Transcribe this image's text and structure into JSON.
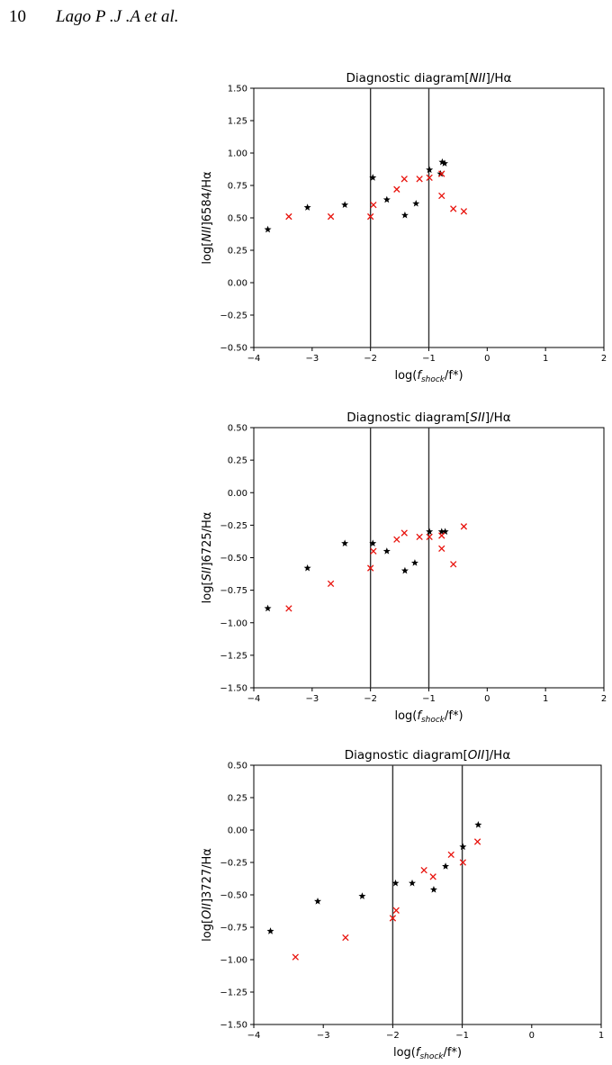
{
  "header": {
    "page_number": "10",
    "running_head": "Lago P .J .A et al."
  },
  "colors": {
    "series_black": "#000000",
    "series_red": "#e8120c",
    "vertical_lines": "#333333"
  },
  "chart_data": [
    {
      "type": "scatter",
      "title_prefix": "Diagnostic diagram[",
      "title_ion": "NII",
      "title_suffix": "]/Hα",
      "ylabel_prefix": "log[",
      "ylabel_ion": "NII",
      "ylabel_suffix": "]6584/Hα",
      "xlabel_prefix": "log(",
      "xlabel_sub": "shock",
      "xlabel_suffix": "/f*)",
      "xlim": [
        -4,
        2
      ],
      "ylim": [
        -0.5,
        1.5
      ],
      "xticks": [
        -4,
        -3,
        -2,
        -1,
        0,
        1,
        2
      ],
      "xtick_labels": [
        "−4",
        "−3",
        "−2",
        "−1",
        "0",
        "1",
        "2"
      ],
      "yticks": [
        -0.5,
        -0.25,
        0,
        0.25,
        0.5,
        0.75,
        1,
        1.25,
        1.5
      ],
      "ytick_labels": [
        "−0.50",
        "−0.25",
        "0.00",
        "0.25",
        "0.50",
        "0.75",
        "1.00",
        "1.25",
        "1.50"
      ],
      "vlines": [
        -2,
        -1
      ],
      "grid": false,
      "series": [
        {
          "marker": "star",
          "color": "#000000",
          "x": [
            -3.76,
            -3.08,
            -2.44,
            -1.96,
            -1.72,
            -1.41,
            -1.22,
            -0.99,
            -0.77,
            -0.73,
            -0.8
          ],
          "y": [
            0.41,
            0.58,
            0.6,
            0.81,
            0.64,
            0.52,
            0.61,
            0.87,
            0.93,
            0.92,
            0.84
          ]
        },
        {
          "marker": "x",
          "color": "#e8120c",
          "x": [
            -3.4,
            -2.68,
            -2.0,
            -1.95,
            -1.55,
            -1.42,
            -1.16,
            -0.99,
            -0.78,
            -0.78,
            -0.58,
            -0.4
          ],
          "y": [
            0.51,
            0.51,
            0.51,
            0.6,
            0.72,
            0.8,
            0.8,
            0.81,
            0.84,
            0.67,
            0.57,
            0.55
          ]
        }
      ]
    },
    {
      "type": "scatter",
      "title_prefix": "Diagnostic diagram[",
      "title_ion": "SII",
      "title_suffix": "]/Hα",
      "ylabel_prefix": "log[",
      "ylabel_ion": "SII",
      "ylabel_suffix": "]6725/Hα",
      "xlabel_prefix": "log(",
      "xlabel_sub": "shock",
      "xlabel_suffix": "/f*)",
      "xlim": [
        -4,
        2
      ],
      "ylim": [
        -1.5,
        0.5
      ],
      "xticks": [
        -4,
        -3,
        -2,
        -1,
        0,
        1,
        2
      ],
      "xtick_labels": [
        "−4",
        "−3",
        "−2",
        "−1",
        "0",
        "1",
        "2"
      ],
      "yticks": [
        -1.5,
        -1.25,
        -1,
        -0.75,
        -0.5,
        -0.25,
        0,
        0.25,
        0.5
      ],
      "ytick_labels": [
        "−1.50",
        "−1.25",
        "−1.00",
        "−0.75",
        "−0.50",
        "−0.25",
        "0.00",
        "0.25",
        "0.50"
      ],
      "vlines": [
        -2,
        -1
      ],
      "grid": false,
      "series": [
        {
          "marker": "star",
          "color": "#000000",
          "x": [
            -3.76,
            -3.08,
            -2.44,
            -1.96,
            -1.72,
            -1.41,
            -1.24,
            -0.99,
            -0.78,
            -0.72
          ],
          "y": [
            -0.89,
            -0.58,
            -0.39,
            -0.39,
            -0.45,
            -0.6,
            -0.54,
            -0.3,
            -0.3,
            -0.3
          ]
        },
        {
          "marker": "x",
          "color": "#e8120c",
          "x": [
            -3.4,
            -2.68,
            -2.0,
            -1.95,
            -1.55,
            -1.42,
            -1.16,
            -0.99,
            -0.78,
            -0.78,
            -0.58,
            -0.4
          ],
          "y": [
            -0.89,
            -0.7,
            -0.58,
            -0.45,
            -0.36,
            -0.31,
            -0.34,
            -0.34,
            -0.33,
            -0.43,
            -0.55,
            -0.26
          ]
        }
      ]
    },
    {
      "type": "scatter",
      "title_prefix": "Diagnostic diagram[",
      "title_ion": "OII",
      "title_suffix": "]/Hα",
      "ylabel_prefix": "log[",
      "ylabel_ion": "OII",
      "ylabel_suffix": "]3727/Hα",
      "xlabel_prefix": "log(",
      "xlabel_sub": "shock",
      "xlabel_suffix": "/f*)",
      "xlim": [
        -4,
        1
      ],
      "ylim": [
        -1.5,
        0.5
      ],
      "xticks": [
        -4,
        -3,
        -2,
        -1,
        0,
        1
      ],
      "xtick_labels": [
        "−4",
        "−3",
        "−2",
        "−1",
        "0",
        "1"
      ],
      "yticks": [
        -1.5,
        -1.25,
        -1,
        -0.75,
        -0.5,
        -0.25,
        0,
        0.25,
        0.5
      ],
      "ytick_labels": [
        "−1.50",
        "−1.25",
        "−1.00",
        "−0.75",
        "−0.50",
        "−0.25",
        "0.00",
        "0.25",
        "0.50"
      ],
      "vlines": [
        -2,
        -1
      ],
      "grid": false,
      "series": [
        {
          "marker": "star",
          "color": "#000000",
          "x": [
            -3.76,
            -3.08,
            -2.44,
            -1.96,
            -1.72,
            -1.41,
            -1.24,
            -0.99,
            -0.77
          ],
          "y": [
            -0.78,
            -0.55,
            -0.51,
            -0.41,
            -0.41,
            -0.46,
            -0.28,
            -0.13,
            0.04
          ]
        },
        {
          "marker": "x",
          "color": "#e8120c",
          "x": [
            -3.4,
            -2.68,
            -2.0,
            -1.95,
            -1.55,
            -1.42,
            -1.16,
            -0.99,
            -0.78
          ],
          "y": [
            -0.98,
            -0.83,
            -0.68,
            -0.62,
            -0.31,
            -0.36,
            -0.19,
            -0.25,
            -0.09
          ]
        }
      ]
    }
  ]
}
